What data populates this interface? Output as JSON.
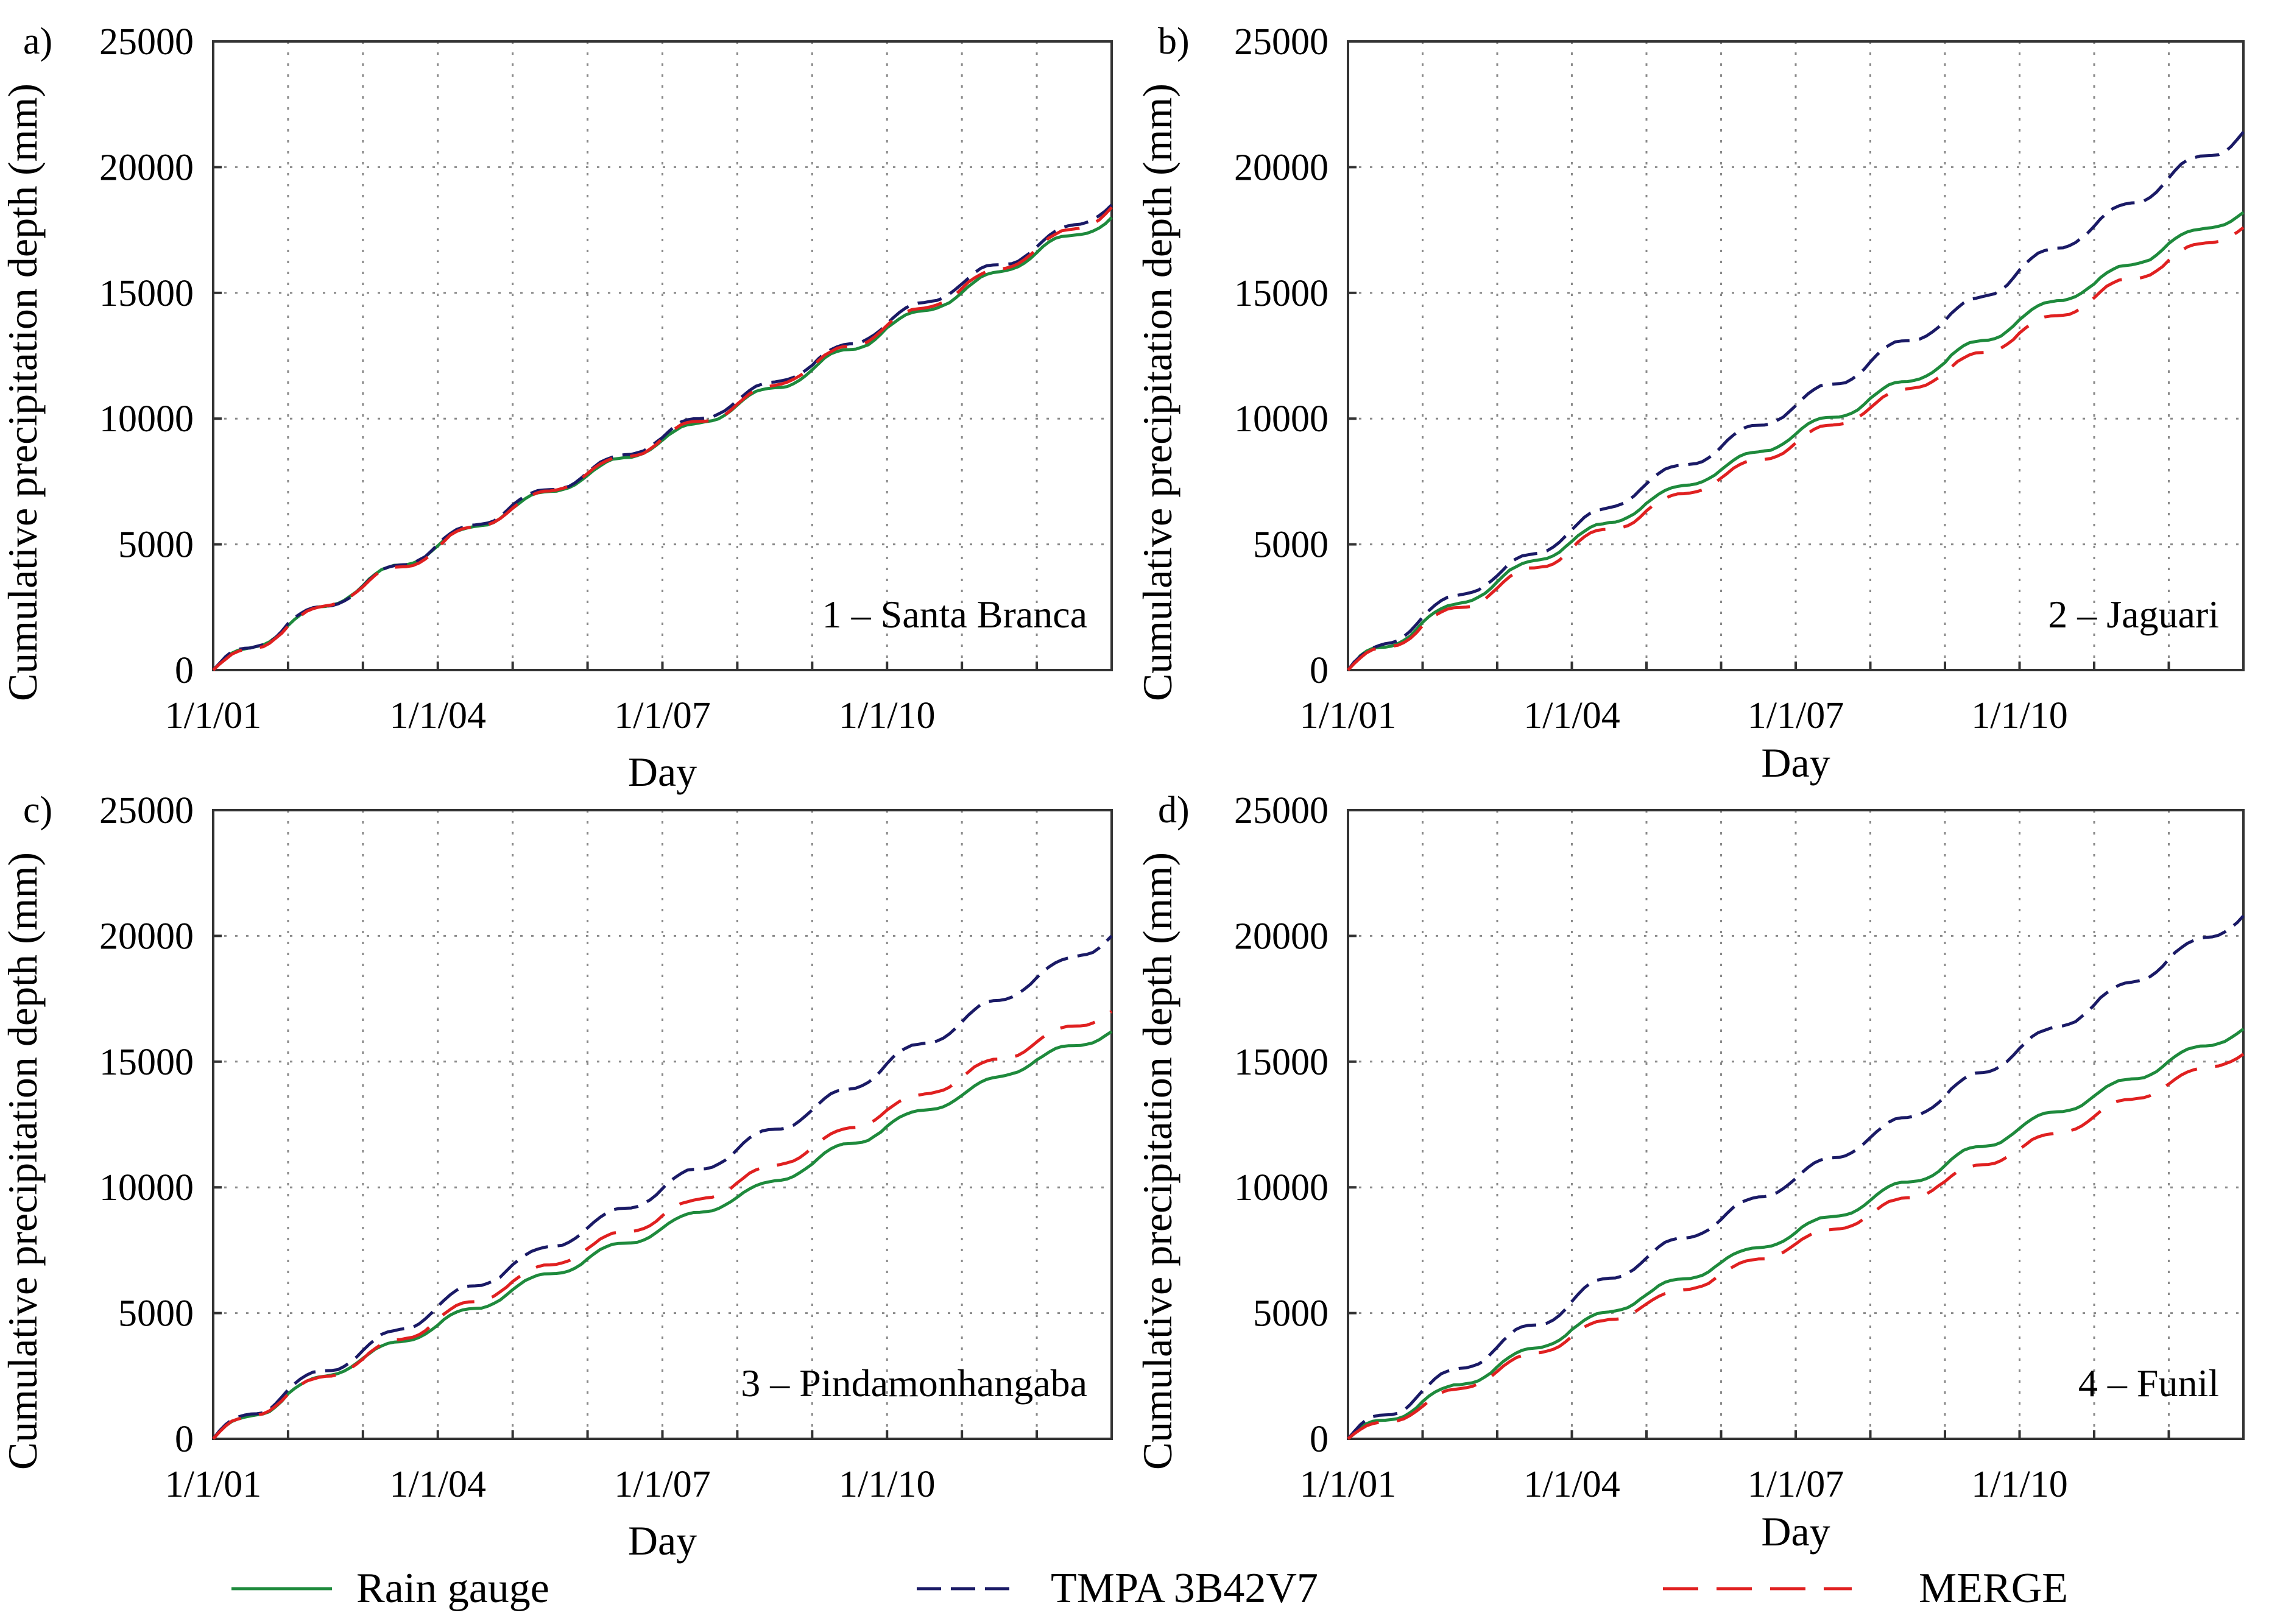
{
  "legend": [
    {
      "name": "Rain gauge",
      "color": "#1e8a3c",
      "dash": "solid"
    },
    {
      "name": "TMPA 3B42V7",
      "color": "#1a1a66",
      "dash": "dashed"
    },
    {
      "name": "MERGE",
      "color": "#e02020",
      "dash": "long-dashed"
    }
  ],
  "chart_data": [
    {
      "type": "line",
      "panel": "a)",
      "station": "1 – Santa Branca",
      "title": "",
      "xlabel": "Day",
      "ylabel": "Cumulative precipitation depth (mm)",
      "xlim": [
        2001.0,
        2013.0
      ],
      "ylim": [
        0,
        25000
      ],
      "xticks": [
        2001,
        2004,
        2007,
        2010
      ],
      "xtick_labels": [
        "1/1/01",
        "1/1/04",
        "1/1/07",
        "1/1/10"
      ],
      "yticks": [
        0,
        5000,
        10000,
        15000,
        20000,
        25000
      ],
      "ytick_labels": [
        "0",
        "5000",
        "10000",
        "15000",
        "20000",
        "25000"
      ],
      "series": [
        {
          "name": "Rain gauge",
          "annual_totals": [
            1900,
            1700,
            1700,
            1600,
            1400,
            1500,
            1500,
            1500,
            1800,
            1500,
            1700,
            1500
          ],
          "final": 18000
        },
        {
          "name": "TMPA 3B42V7",
          "annual_totals": [
            2000,
            1600,
            1800,
            1700,
            1400,
            1500,
            1600,
            1500,
            1800,
            1700,
            1600,
            1800
          ],
          "final": 18500
        },
        {
          "name": "MERGE",
          "annual_totals": [
            1900,
            1700,
            1700,
            1700,
            1500,
            1500,
            1500,
            1600,
            1800,
            1600,
            1700,
            1800
          ],
          "final": 18400
        }
      ]
    },
    {
      "type": "line",
      "panel": "b)",
      "station": "2 – Jaguari",
      "title": "",
      "xlabel": "Day",
      "ylabel": "Cumulative precipitation depth (mm)",
      "xlim": [
        2001.0,
        2013.0
      ],
      "ylim": [
        0,
        25000
      ],
      "xticks": [
        2001,
        2004,
        2007,
        2010
      ],
      "xtick_labels": [
        "1/1/01",
        "1/1/04",
        "1/1/07",
        "1/1/10"
      ],
      "yticks": [
        0,
        5000,
        10000,
        15000,
        20000,
        25000
      ],
      "ytick_labels": [
        "0",
        "5000",
        "10000",
        "15000",
        "20000",
        "25000"
      ],
      "series": [
        {
          "name": "Rain gauge",
          "annual_totals": [
            2000,
            1700,
            1700,
            1600,
            1400,
            1500,
            1500,
            1500,
            1800,
            1500,
            1700,
            1300
          ],
          "final": 18200
        },
        {
          "name": "TMPA 3B42V7",
          "annual_totals": [
            2300,
            1800,
            2000,
            2000,
            1600,
            1800,
            1900,
            1800,
            2200,
            1900,
            2100,
            2000
          ],
          "final": 21400
        },
        {
          "name": "MERGE",
          "annual_totals": [
            1900,
            1600,
            1700,
            1600,
            1400,
            1500,
            1500,
            1500,
            1700,
            1500,
            1600,
            1400
          ],
          "final": 17600
        }
      ]
    },
    {
      "type": "line",
      "panel": "c)",
      "station": "3 – Pindamonhangaba",
      "title": "",
      "xlabel": "Day",
      "ylabel": "Cumulative precipitation depth (mm)",
      "xlim": [
        2001.0,
        2013.0
      ],
      "ylim": [
        0,
        25000
      ],
      "xticks": [
        2001,
        2004,
        2007,
        2010
      ],
      "xtick_labels": [
        "1/1/01",
        "1/1/04",
        "1/1/07",
        "1/1/10"
      ],
      "yticks": [
        0,
        5000,
        10000,
        15000,
        20000,
        25000
      ],
      "ytick_labels": [
        "0",
        "5000",
        "10000",
        "15000",
        "20000",
        "25000"
      ],
      "series": [
        {
          "name": "Rain gauge",
          "annual_totals": [
            1900,
            1500,
            1400,
            1500,
            1300,
            1300,
            1300,
            1400,
            1600,
            1300,
            1500,
            1200
          ],
          "final": 16200
        },
        {
          "name": "TMPA 3B42V7",
          "annual_totals": [
            2000,
            1600,
            1800,
            1700,
            1500,
            1600,
            1600,
            1600,
            1900,
            1700,
            1800,
            1700
          ],
          "final": 20000
        },
        {
          "name": "MERGE",
          "annual_totals": [
            1900,
            1500,
            1700,
            1600,
            1400,
            1400,
            1400,
            1500,
            1600,
            1400,
            1500,
            1300
          ],
          "final": 17000
        }
      ]
    },
    {
      "type": "line",
      "panel": "d)",
      "station": "4 – Funil",
      "title": "",
      "xlabel": "Day",
      "ylabel": "Cumulative precipitation depth (mm)",
      "xlim": [
        2001.0,
        2013.0
      ],
      "ylim": [
        0,
        25000
      ],
      "xticks": [
        2001,
        2004,
        2007,
        2010
      ],
      "xtick_labels": [
        "1/1/01",
        "1/1/04",
        "1/1/07",
        "1/1/10"
      ],
      "yticks": [
        0,
        5000,
        10000,
        15000,
        20000,
        25000
      ],
      "ytick_labels": [
        "0",
        "5000",
        "10000",
        "15000",
        "20000",
        "25000"
      ],
      "series": [
        {
          "name": "Rain gauge",
          "annual_totals": [
            1500,
            1400,
            1500,
            1400,
            1300,
            1200,
            1300,
            1400,
            1500,
            1300,
            1400,
            1300
          ],
          "final": 16300
        },
        {
          "name": "TMPA 3B42V7",
          "annual_totals": [
            2000,
            1800,
            1900,
            1800,
            1600,
            1700,
            1700,
            1700,
            2000,
            1800,
            1900,
            1800
          ],
          "final": 20800
        },
        {
          "name": "MERGE",
          "annual_totals": [
            1300,
            1400,
            1400,
            1300,
            1200,
            1200,
            1200,
            1300,
            1300,
            1300,
            1300,
            1200
          ],
          "final": 15300
        }
      ]
    }
  ]
}
